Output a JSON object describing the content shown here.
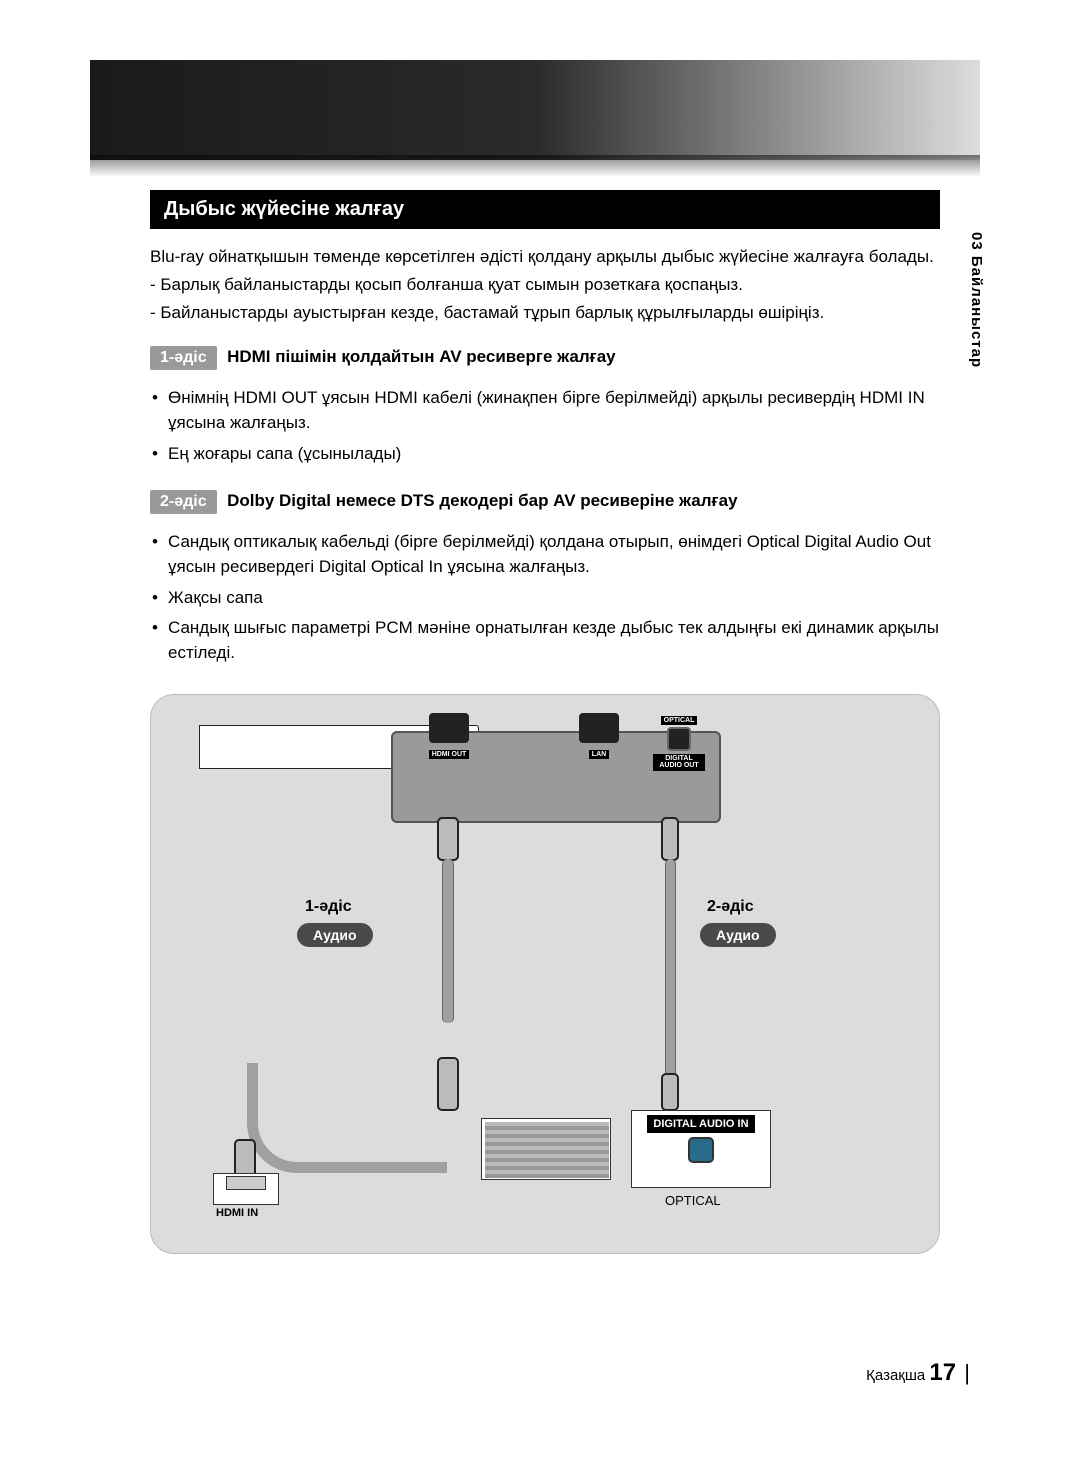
{
  "side_tab": "03 Байланыстар",
  "section_title": "Дыбыс жүйесіне жалғау",
  "intro": "Blu-ray ойнатқышын төменде көрсетілген әдісті қолдану арқылы дыбыс жүйесіне жалғауға болады.",
  "intro_bullets": [
    "- Барлық байланыстарды қосып болғанша қуат сымын розеткаға қоспаңыз.",
    "- Байланыстарды ауыстырған кезде, бастамай тұрып барлық құрылғыларды өшіріңіз."
  ],
  "method1": {
    "badge": "1-әдіс",
    "title": "HDMI пішімін қолдайтын AV ресиверге жалғау",
    "bullets": [
      "Өнімнің HDMI OUT ұясын HDMI кабелі (жинақпен бірге берілмейді) арқылы ресивердің HDMI IN ұясына жалғаңыз.",
      "Ең жоғары сапа (ұсынылады)"
    ]
  },
  "method2": {
    "badge": "2-әдіс",
    "title": "Dolby Digital немесе DTS декодері бар AV ресиверіне жалғау",
    "bullets": [
      "Сандық оптикалық кабельді (бірге берілмейді) қолдана отырып, өнімдегі Optical Digital Audio Out ұясын ресивердегі Digital Optical In ұясына жалғаңыз.",
      "Жақсы сапа",
      "Сандық шығыс параметрі PCM мәніне орнатылған кезде дыбыс тек алдыңғы екі динамик арқылы естіледі."
    ]
  },
  "diagram": {
    "top_ports": {
      "hdmi_out": "HDMI OUT",
      "lan": "LAN",
      "optical_top": "OPTICAL",
      "digital_audio_out": "DIGITAL AUDIO OUT"
    },
    "label_method1": "1-әдіс",
    "label_method2": "2-әдіс",
    "audio": "Аудио",
    "hdmi_in": "HDMI IN",
    "digital_audio_in": "DIGITAL AUDIO IN",
    "optical": "OPTICAL"
  },
  "footer": {
    "lang": "Қазақша",
    "page": "17"
  },
  "colors": {
    "section_bg": "#000000",
    "badge_bg": "#999999",
    "chip_bg": "#4a4a4a",
    "diagram_bg": "#dcdcdc",
    "panel_bg": "#9a9a9a"
  }
}
